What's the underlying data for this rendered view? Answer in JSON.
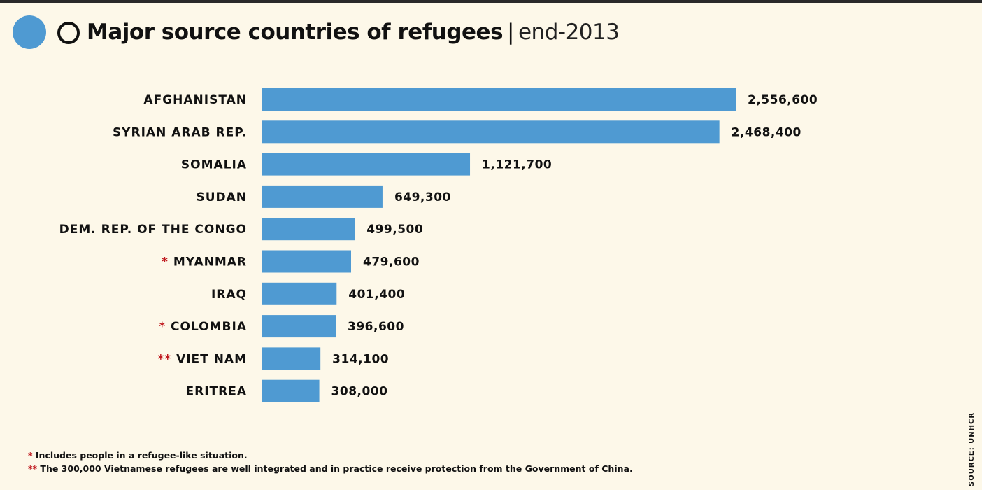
{
  "title": {
    "main": "Major source countries of refugees",
    "separator": "|",
    "subtitle": "end-2013"
  },
  "colors": {
    "bar": "#4f9ad2",
    "asterisk": "#c0191e",
    "background": "#fdf8e9"
  },
  "chart_data": {
    "type": "bar",
    "orientation": "horizontal",
    "title": "Major source countries of refugees | end-2013",
    "xlabel": "",
    "ylabel": "",
    "grid": false,
    "categories": [
      "AFGHANISTAN",
      "SYRIAN ARAB REP.",
      "SOMALIA",
      "SUDAN",
      "DEM. REP. OF THE CONGO",
      "MYANMAR",
      "IRAQ",
      "COLOMBIA",
      "VIET NAM",
      "ERITREA"
    ],
    "markers": [
      "",
      "",
      "",
      "",
      "",
      "*",
      "",
      "*",
      "**",
      ""
    ],
    "values": [
      2556600,
      2468400,
      1121700,
      649300,
      499500,
      479600,
      401400,
      396600,
      314100,
      308000
    ],
    "value_labels": [
      "2,556,600",
      "2,468,400",
      "1,121,700",
      "649,300",
      "499,500",
      "479,600",
      "401,400",
      "396,600",
      "314,100",
      "308,000"
    ],
    "xlim": [
      0,
      2556600
    ]
  },
  "footnotes": [
    {
      "marker": "*",
      "text": " Includes people in a refugee-like situation."
    },
    {
      "marker": "**",
      "text": " The 300,000 Vietnamese refugees are well integrated and in practice receive protection from the Government of China."
    }
  ],
  "source": "SOURCE: UNHCR"
}
